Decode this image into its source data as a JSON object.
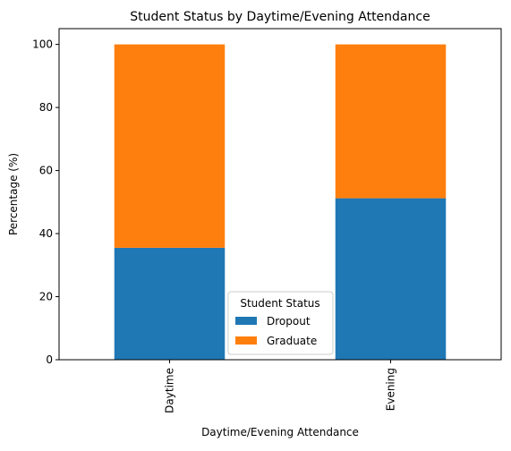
{
  "chart_data": {
    "type": "bar",
    "stacked": true,
    "title": "Student Status by Daytime/Evening Attendance",
    "xlabel": "Daytime/Evening Attendance",
    "ylabel": "Percentage (%)",
    "categories": [
      "Daytime",
      "Evening"
    ],
    "series": [
      {
        "name": "Dropout",
        "values": [
          35.5,
          51.2
        ],
        "color": "#1f77b4"
      },
      {
        "name": "Graduate",
        "values": [
          64.5,
          48.8
        ],
        "color": "#ff7f0e"
      }
    ],
    "ylim": [
      0,
      105
    ],
    "yticks": [
      0,
      20,
      40,
      60,
      80,
      100
    ],
    "grid": false,
    "legend": {
      "title": "Student Status",
      "placement": "bottom-center"
    }
  }
}
